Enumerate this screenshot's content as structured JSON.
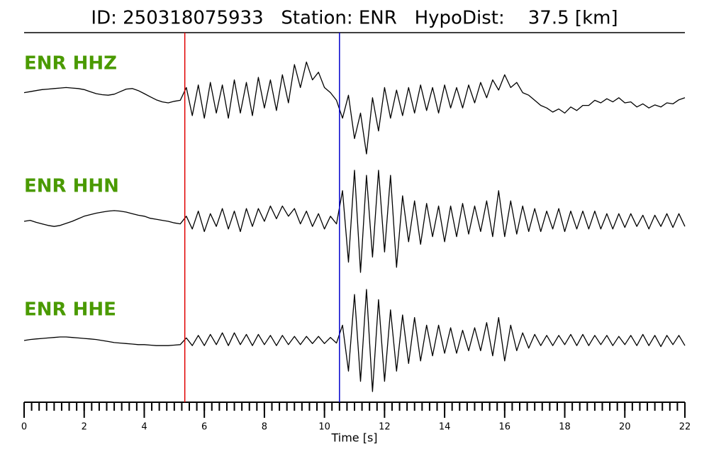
{
  "chart_data": {
    "type": "line",
    "title": "ID: 250318075933   Station: ENR   HypoDist:    37.5 [km]",
    "xlabel": "Time [s]",
    "xlim": [
      0,
      22
    ],
    "xticks": [
      0,
      2,
      4,
      6,
      8,
      10,
      12,
      14,
      16,
      18,
      20,
      22
    ],
    "xminorticks": [
      0,
      0.25,
      0.5,
      0.75,
      1,
      1.25,
      1.5,
      1.75,
      2,
      2.25,
      2.5,
      2.75,
      3,
      3.25,
      3.5,
      3.75,
      4,
      4.25,
      4.5,
      4.75,
      5,
      5.25,
      5.5,
      5.75,
      6,
      6.25,
      6.5,
      6.75,
      7,
      7.25,
      7.5,
      7.75,
      8,
      8.25,
      8.5,
      8.75,
      9,
      9.25,
      9.5,
      9.75,
      10,
      10.25,
      10.5,
      10.75,
      11,
      11.25,
      11.5,
      11.75,
      12,
      12.25,
      12.5,
      12.75,
      13,
      13.25,
      13.5,
      13.75,
      14,
      14.25,
      14.5,
      14.75,
      15,
      15.25,
      15.5,
      15.75,
      16,
      16.25,
      16.5,
      16.75,
      17,
      17.25,
      17.5,
      17.75,
      18,
      18.25,
      18.5,
      18.75,
      19,
      19.25,
      19.5,
      19.75,
      20,
      20.25,
      20.5,
      20.75,
      21,
      21.25,
      21.5,
      21.75,
      22
    ],
    "picks": [
      {
        "x": 5.35,
        "color": "#e00000"
      },
      {
        "x": 10.5,
        "color": "#0000cc"
      }
    ],
    "label_color": "#4a9a00",
    "x": [
      0,
      0.2,
      0.4,
      0.6,
      0.8,
      1,
      1.2,
      1.4,
      1.6,
      1.8,
      2,
      2.2,
      2.4,
      2.6,
      2.8,
      3,
      3.2,
      3.4,
      3.6,
      3.8,
      4,
      4.2,
      4.4,
      4.6,
      4.8,
      5,
      5.2,
      5.4,
      5.6,
      5.8,
      6,
      6.2,
      6.4,
      6.6,
      6.8,
      7,
      7.2,
      7.4,
      7.6,
      7.8,
      8,
      8.2,
      8.4,
      8.6,
      8.8,
      9,
      9.2,
      9.4,
      9.6,
      9.8,
      10,
      10.2,
      10.4,
      10.6,
      10.8,
      11,
      11.2,
      11.4,
      11.6,
      11.8,
      12,
      12.2,
      12.4,
      12.6,
      12.8,
      13,
      13.2,
      13.4,
      13.6,
      13.8,
      14,
      14.2,
      14.4,
      14.6,
      14.8,
      15,
      15.2,
      15.4,
      15.6,
      15.8,
      16,
      16.2,
      16.4,
      16.6,
      16.8,
      17,
      17.2,
      17.4,
      17.6,
      17.8,
      18,
      18.2,
      18.4,
      18.6,
      18.8,
      19,
      19.2,
      19.4,
      19.6,
      19.8,
      20,
      20.2,
      20.4,
      20.6,
      20.8,
      21,
      21.2,
      21.4,
      21.6,
      21.8,
      22
    ],
    "series": [
      {
        "name": "ENR HHZ",
        "color": "#000000",
        "ylim": [
          -1,
          1
        ],
        "values": [
          0.2,
          0.22,
          0.24,
          0.26,
          0.27,
          0.28,
          0.29,
          0.3,
          0.29,
          0.28,
          0.26,
          0.22,
          0.18,
          0.16,
          0.15,
          0.17,
          0.22,
          0.27,
          0.28,
          0.24,
          0.18,
          0.12,
          0.06,
          0.02,
          0.0,
          0.03,
          0.05,
          0.3,
          -0.25,
          0.35,
          -0.3,
          0.4,
          -0.2,
          0.35,
          -0.3,
          0.45,
          -0.2,
          0.4,
          -0.25,
          0.5,
          -0.1,
          0.45,
          -0.15,
          0.55,
          0.0,
          0.75,
          0.3,
          0.8,
          0.45,
          0.6,
          0.3,
          0.2,
          0.05,
          -0.3,
          0.15,
          -0.7,
          -0.2,
          -1.0,
          0.1,
          -0.55,
          0.3,
          -0.3,
          0.25,
          -0.25,
          0.3,
          -0.2,
          0.35,
          -0.15,
          0.3,
          -0.2,
          0.35,
          -0.1,
          0.3,
          -0.1,
          0.35,
          0.0,
          0.4,
          0.1,
          0.45,
          0.25,
          0.55,
          0.3,
          0.4,
          0.2,
          0.15,
          0.05,
          -0.05,
          -0.1,
          -0.18,
          -0.12,
          -0.2,
          -0.08,
          -0.15,
          -0.05,
          -0.05,
          0.05,
          0.0,
          0.08,
          0.02,
          0.1,
          0.0,
          0.02,
          -0.08,
          -0.02,
          -0.1,
          -0.04,
          -0.08,
          0.0,
          -0.02,
          0.06,
          0.1
        ]
      },
      {
        "name": "ENR HHN",
        "color": "#000000",
        "ylim": [
          -1,
          1
        ],
        "values": [
          0.0,
          0.02,
          -0.02,
          -0.05,
          -0.08,
          -0.1,
          -0.08,
          -0.04,
          0.0,
          0.05,
          0.1,
          0.13,
          0.16,
          0.18,
          0.2,
          0.21,
          0.2,
          0.18,
          0.15,
          0.12,
          0.1,
          0.06,
          0.04,
          0.02,
          0.0,
          -0.03,
          -0.05,
          0.1,
          -0.15,
          0.2,
          -0.2,
          0.15,
          -0.1,
          0.25,
          -0.15,
          0.2,
          -0.2,
          0.25,
          -0.1,
          0.25,
          0.0,
          0.3,
          0.05,
          0.3,
          0.1,
          0.25,
          -0.05,
          0.2,
          -0.1,
          0.15,
          -0.15,
          0.1,
          -0.05,
          0.6,
          -0.8,
          1.0,
          -1.0,
          0.9,
          -0.7,
          1.0,
          -0.6,
          0.9,
          -0.9,
          0.5,
          -0.4,
          0.4,
          -0.45,
          0.35,
          -0.3,
          0.3,
          -0.4,
          0.3,
          -0.3,
          0.35,
          -0.25,
          0.3,
          -0.2,
          0.4,
          -0.3,
          0.6,
          -0.3,
          0.4,
          -0.25,
          0.3,
          -0.2,
          0.25,
          -0.2,
          0.2,
          -0.15,
          0.25,
          -0.2,
          0.2,
          -0.15,
          0.2,
          -0.15,
          0.2,
          -0.15,
          0.15,
          -0.15,
          0.15,
          -0.12,
          0.15,
          -0.1,
          0.12,
          -0.15,
          0.12,
          -0.1,
          0.15,
          -0.12,
          0.15,
          -0.1
        ]
      },
      {
        "name": "ENR HHE",
        "color": "#000000",
        "ylim": [
          -1,
          1
        ],
        "values": [
          0.0,
          0.02,
          0.03,
          0.04,
          0.05,
          0.06,
          0.07,
          0.07,
          0.06,
          0.05,
          0.04,
          0.03,
          0.02,
          0.0,
          -0.02,
          -0.04,
          -0.05,
          -0.06,
          -0.07,
          -0.08,
          -0.08,
          -0.09,
          -0.1,
          -0.1,
          -0.1,
          -0.09,
          -0.08,
          0.05,
          -0.1,
          0.1,
          -0.1,
          0.12,
          -0.08,
          0.15,
          -0.1,
          0.15,
          -0.08,
          0.12,
          -0.1,
          0.12,
          -0.08,
          0.1,
          -0.1,
          0.1,
          -0.08,
          0.08,
          -0.08,
          0.08,
          -0.06,
          0.08,
          -0.06,
          0.06,
          -0.05,
          0.3,
          -0.6,
          0.9,
          -0.8,
          1.0,
          -1.0,
          0.8,
          -0.8,
          0.6,
          -0.6,
          0.5,
          -0.45,
          0.45,
          -0.4,
          0.3,
          -0.3,
          0.3,
          -0.25,
          0.25,
          -0.25,
          0.2,
          -0.2,
          0.25,
          -0.2,
          0.35,
          -0.3,
          0.45,
          -0.4,
          0.3,
          -0.2,
          0.15,
          -0.15,
          0.12,
          -0.1,
          0.1,
          -0.1,
          0.1,
          -0.08,
          0.12,
          -0.1,
          0.12,
          -0.1,
          0.1,
          -0.08,
          0.1,
          -0.1,
          0.08,
          -0.08,
          0.1,
          -0.1,
          0.12,
          -0.1,
          0.1,
          -0.12,
          0.1,
          -0.08,
          0.1,
          -0.1
        ]
      }
    ]
  }
}
